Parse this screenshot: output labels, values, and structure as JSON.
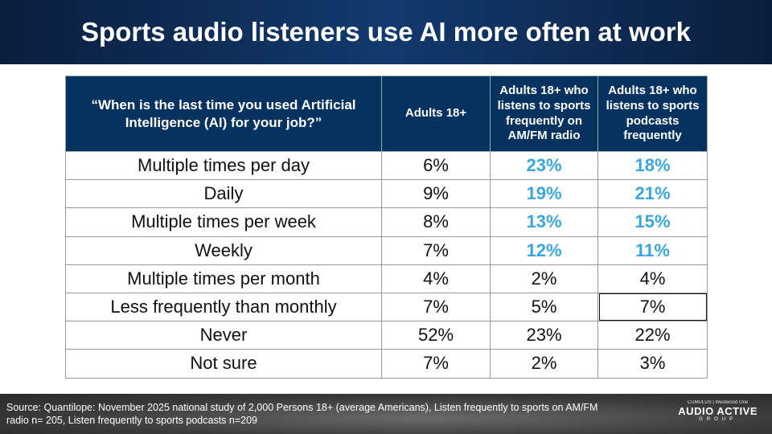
{
  "title": "Sports audio listeners use AI more often at work",
  "table": {
    "headers": [
      "“When is the last time you used Artificial Intelligence (AI) for your job?”",
      "Adults 18+",
      "Adults 18+ who listens to sports frequently on AM/FM radio",
      "Adults 18+ who listens to sports podcasts frequently"
    ],
    "rows": [
      {
        "label": "Multiple times per day",
        "values": [
          "6%",
          "23%",
          "18%"
        ],
        "highlight": [
          false,
          true,
          true
        ]
      },
      {
        "label": "Daily",
        "values": [
          "9%",
          "19%",
          "21%"
        ],
        "highlight": [
          false,
          true,
          true
        ]
      },
      {
        "label": "Multiple times per week",
        "values": [
          "8%",
          "13%",
          "15%"
        ],
        "highlight": [
          false,
          true,
          true
        ]
      },
      {
        "label": "Weekly",
        "values": [
          "7%",
          "12%",
          "11%"
        ],
        "highlight": [
          false,
          true,
          true
        ]
      },
      {
        "label": "Multiple times per month",
        "values": [
          "4%",
          "2%",
          "4%"
        ],
        "highlight": [
          false,
          false,
          false
        ]
      },
      {
        "label": "Less frequently than monthly",
        "values": [
          "7%",
          "5%",
          "7%"
        ],
        "highlight": [
          false,
          false,
          false
        ]
      },
      {
        "label": "Never",
        "values": [
          "52%",
          "23%",
          "22%"
        ],
        "highlight": [
          false,
          false,
          false
        ]
      },
      {
        "label": "Not sure",
        "values": [
          "7%",
          "2%",
          "3%"
        ],
        "highlight": [
          false,
          false,
          false
        ]
      }
    ]
  },
  "footer": {
    "source": "Source: Quantilope: November 2025 national study of 2,000 Persons 18+ (average Americans), Listen frequently to sports on AM/FM radio n= 205, Listen frequently to sports podcasts n=209",
    "logo_top": "CUMULUS | Westwood One",
    "logo_main": "AUDIO ACTIVE",
    "logo_sub": "GROUP"
  },
  "colors": {
    "highlight": "#3aa6dc",
    "header_bg": "#06325f"
  }
}
